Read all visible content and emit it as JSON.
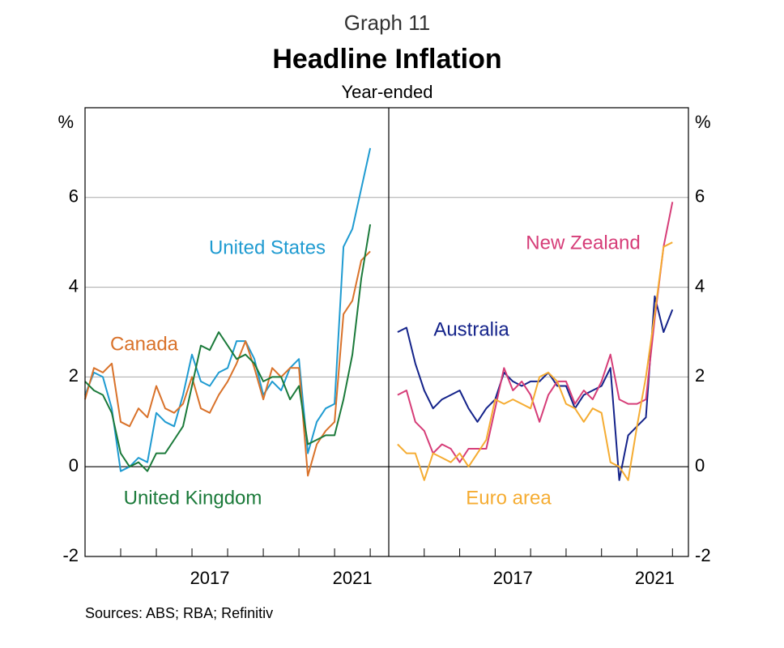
{
  "graph_label": "Graph 11",
  "title": "Headline Inflation",
  "subtitle": "Year-ended",
  "source": "Sources: ABS; RBA; Refinitiv",
  "chart_data": [
    {
      "type": "line",
      "y_label": "%",
      "xlim": [
        2014,
        2022.52
      ],
      "ylim": [
        -2,
        8
      ],
      "yticks": [
        -2,
        0,
        2,
        4,
        6
      ],
      "xticks": [
        2015,
        2016,
        2017,
        2018,
        2019,
        2020,
        2021,
        2022
      ],
      "xtick_labels": [
        {
          "value": 2017.5,
          "label": "2017"
        },
        {
          "value": 2021.5,
          "label": "2021"
        }
      ],
      "grid": true,
      "x": [
        2014,
        2014.25,
        2014.5,
        2014.75,
        2015,
        2015.25,
        2015.5,
        2015.75,
        2016,
        2016.25,
        2016.5,
        2016.75,
        2017,
        2017.25,
        2017.5,
        2017.75,
        2018,
        2018.25,
        2018.5,
        2018.75,
        2019,
        2019.25,
        2019.5,
        2019.75,
        2020,
        2020.25,
        2020.5,
        2020.75,
        2021,
        2021.25,
        2021.5,
        2021.75,
        2022
      ],
      "series": [
        {
          "name": "United States",
          "color": "#1f9bd1",
          "values": [
            1.6,
            2.1,
            2.0,
            1.3,
            -0.1,
            0.0,
            0.2,
            0.1,
            1.2,
            1.0,
            0.9,
            1.6,
            2.5,
            1.9,
            1.8,
            2.1,
            2.2,
            2.8,
            2.8,
            2.4,
            1.6,
            1.9,
            1.7,
            2.2,
            2.4,
            0.3,
            1.0,
            1.3,
            1.4,
            4.9,
            5.3,
            6.2,
            7.1
          ]
        },
        {
          "name": "Canada",
          "color": "#d9722a",
          "values": [
            1.5,
            2.2,
            2.1,
            2.3,
            1.0,
            0.9,
            1.3,
            1.1,
            1.8,
            1.3,
            1.2,
            1.4,
            2.0,
            1.3,
            1.2,
            1.6,
            1.9,
            2.3,
            2.8,
            2.2,
            1.5,
            2.2,
            2.0,
            2.2,
            2.2,
            -0.2,
            0.5,
            0.8,
            1.0,
            3.4,
            3.7,
            4.6,
            4.8
          ]
        },
        {
          "name": "United Kingdom",
          "color": "#1b7a3a",
          "values": [
            1.9,
            1.7,
            1.6,
            1.2,
            0.3,
            0.0,
            0.1,
            -0.1,
            0.3,
            0.3,
            0.6,
            0.9,
            1.8,
            2.7,
            2.6,
            3.0,
            2.7,
            2.4,
            2.5,
            2.3,
            1.9,
            2.0,
            2.0,
            1.5,
            1.8,
            0.5,
            0.6,
            0.7,
            0.7,
            1.5,
            2.5,
            4.2,
            5.4
          ]
        }
      ]
    },
    {
      "type": "line",
      "y_label": "%",
      "xlim": [
        2014,
        2022.45
      ],
      "ylim": [
        -2,
        8
      ],
      "yticks": [
        -2,
        0,
        2,
        4,
        6
      ],
      "xticks": [
        2015,
        2016,
        2017,
        2018,
        2019,
        2020,
        2021,
        2022
      ],
      "xtick_labels": [
        {
          "value": 2017.5,
          "label": "2017"
        },
        {
          "value": 2021.5,
          "label": "2021"
        }
      ],
      "grid": true,
      "x": [
        2014.25,
        2014.5,
        2014.75,
        2015,
        2015.25,
        2015.5,
        2015.75,
        2016,
        2016.25,
        2016.5,
        2016.75,
        2017,
        2017.25,
        2017.5,
        2017.75,
        2018,
        2018.25,
        2018.5,
        2018.75,
        2019,
        2019.25,
        2019.5,
        2019.75,
        2020,
        2020.25,
        2020.5,
        2020.75,
        2021,
        2021.25,
        2021.5,
        2021.75,
        2022
      ],
      "series": [
        {
          "name": "Australia",
          "color": "#14238a",
          "values": [
            3.0,
            3.1,
            2.3,
            1.7,
            1.3,
            1.5,
            1.6,
            1.7,
            1.3,
            1.0,
            1.3,
            1.5,
            2.1,
            1.9,
            1.8,
            1.9,
            1.9,
            2.1,
            1.8,
            1.8,
            1.3,
            1.6,
            1.7,
            1.8,
            2.2,
            -0.3,
            0.7,
            0.9,
            1.1,
            3.8,
            3.0,
            3.5
          ]
        },
        {
          "name": "New Zealand",
          "color": "#d63d78",
          "values": [
            1.6,
            1.7,
            1.0,
            0.8,
            0.3,
            0.5,
            0.4,
            0.1,
            0.4,
            0.4,
            0.4,
            1.3,
            2.2,
            1.7,
            1.9,
            1.6,
            1.0,
            1.6,
            1.9,
            1.9,
            1.4,
            1.7,
            1.5,
            1.9,
            2.5,
            1.5,
            1.4,
            1.4,
            1.5,
            3.3,
            4.9,
            5.9
          ]
        },
        {
          "name": "Euro area",
          "color": "#f5ac32",
          "values": [
            0.5,
            0.3,
            0.3,
            -0.3,
            0.3,
            0.2,
            0.1,
            0.3,
            0.0,
            0.3,
            0.6,
            1.5,
            1.4,
            1.5,
            1.4,
            1.3,
            2.0,
            2.1,
            1.9,
            1.4,
            1.3,
            1.0,
            1.3,
            1.2,
            0.1,
            0.0,
            -0.3,
            0.9,
            2.0,
            3.4,
            4.9,
            5.0
          ]
        }
      ]
    }
  ]
}
